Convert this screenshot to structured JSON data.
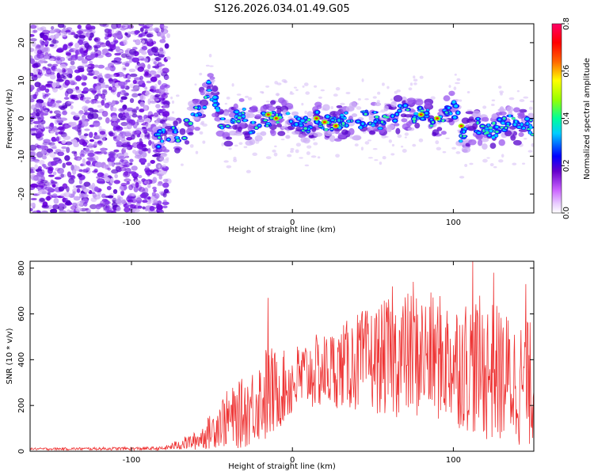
{
  "title": "S126.2026.034.01.49.G05",
  "chart_data": [
    {
      "type": "heatmap",
      "xlabel": "Height of straight line (km)",
      "ylabel": "Frequency (Hz)",
      "xlim": [
        -163,
        150
      ],
      "ylim": [
        -25,
        25
      ],
      "xticks": [
        -100,
        0,
        100
      ],
      "xtick_labels": [
        "-100",
        "0",
        "100"
      ],
      "yticks": [
        20,
        10,
        0,
        -10,
        -20
      ],
      "ytick_labels": [
        "20",
        "10",
        "0",
        "-10",
        "-20"
      ],
      "colorbar": {
        "label": "Normalized spectral amplitude",
        "range": [
          0,
          0.8
        ],
        "ticks": [
          0.8,
          0.6,
          0.4,
          0.2,
          0.0
        ],
        "tick_labels": [
          "0.8",
          "0.6",
          "0.4",
          "0.2",
          "0.0"
        ],
        "colormap": [
          "#ffffff",
          "#cc66ff",
          "#6600cc",
          "#0000ff",
          "#00ccff",
          "#00ff99",
          "#99ff00",
          "#ffff00",
          "#ff6600",
          "#ff0000",
          "#ff0066"
        ]
      },
      "noise_region": {
        "x": [
          -163,
          -85
        ],
        "y": [
          -25,
          25
        ]
      },
      "ridge": {
        "x": [
          -85,
          -80,
          -75,
          -70,
          -65,
          -60,
          -55,
          -52,
          -48,
          -45,
          -40,
          -35,
          -30,
          -27,
          -25,
          -20,
          -15,
          -10,
          -5,
          0,
          5,
          10,
          15,
          20,
          25,
          30,
          35,
          40,
          45,
          50,
          55,
          60,
          65,
          70,
          75,
          80,
          85,
          90,
          95,
          100,
          103,
          105,
          110,
          115,
          120,
          125,
          130,
          135,
          140,
          145,
          150
        ],
        "freq": [
          -6,
          -5,
          -4,
          -5,
          -2,
          1,
          4,
          8,
          5,
          -1,
          -3,
          0,
          1,
          -4,
          -2,
          -1,
          0,
          1,
          0,
          -1,
          -1,
          -2,
          0,
          -1,
          -2,
          -1,
          0,
          -1,
          0,
          0,
          -1,
          0,
          1,
          2,
          1,
          1,
          0,
          -1,
          1,
          3,
          0,
          -5,
          -3,
          -2,
          -4,
          -3,
          -2,
          -1,
          -2,
          -1,
          -3
        ]
      }
    },
    {
      "type": "line",
      "xlabel": "Height of straight line (km)",
      "ylabel": "SNR (10 * v/v)",
      "xlim": [
        -163,
        150
      ],
      "ylim": [
        0,
        830
      ],
      "xticks": [
        -100,
        0,
        100
      ],
      "xtick_labels": [
        "-100",
        "0",
        "100"
      ],
      "yticks": [
        0,
        200,
        400,
        600,
        800
      ],
      "ytick_labels": [
        "0",
        "200",
        "400",
        "600",
        "800"
      ],
      "color": "#ee3333",
      "envelope": {
        "x": [
          -163,
          -80,
          -70,
          -60,
          -50,
          -45,
          -40,
          -35,
          -30,
          -25,
          -20,
          -15,
          -10,
          -5,
          0,
          10,
          20,
          30,
          40,
          50,
          60,
          70,
          80,
          90,
          100,
          110,
          120,
          130,
          140,
          150
        ],
        "mean": [
          10,
          12,
          30,
          45,
          90,
          130,
          140,
          150,
          170,
          200,
          230,
          250,
          260,
          280,
          300,
          340,
          350,
          370,
          390,
          400,
          410,
          420,
          420,
          410,
          390,
          380,
          360,
          330,
          300,
          290
        ],
        "amp": [
          5,
          8,
          25,
          40,
          80,
          110,
          130,
          140,
          160,
          170,
          190,
          230,
          180,
          160,
          160,
          160,
          170,
          180,
          220,
          230,
          260,
          280,
          280,
          280,
          280,
          300,
          320,
          300,
          280,
          280
        ]
      },
      "spikes": [
        {
          "x": -15,
          "y": 670
        },
        {
          "x": 62,
          "y": 720
        },
        {
          "x": 75,
          "y": 740
        },
        {
          "x": 112,
          "y": 830
        },
        {
          "x": 125,
          "y": 780
        },
        {
          "x": 145,
          "y": 730
        }
      ]
    }
  ]
}
